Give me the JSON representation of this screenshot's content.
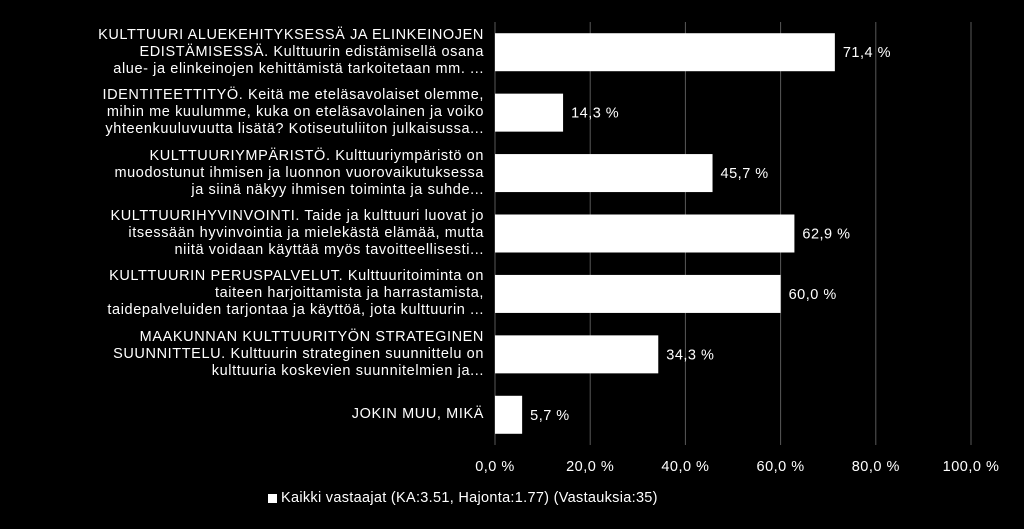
{
  "chart_data": {
    "type": "bar",
    "orientation": "horizontal",
    "categories": [
      "KULTTUURI ALUEKEHITYKSESSÄ JA ELINKEINOJEN\nEDISTÄMISESSÄ. Kulttuurin edistämisellä osana\nalue- ja elinkeinojen kehittämistä tarkoitetaan mm. ...",
      "IDENTITEETTITYÖ. Keitä me eteläsavolaiset olemme,\nmihin me kuulumme, kuka on eteläsavolainen ja voiko\nyhteenkuuluvuutta lisätä? Kotiseutuliiton julkaisussa...",
      "KULTTUURIYMPÄRISTÖ. Kulttuuriympäristö on\nmuodostunut ihmisen ja luonnon vuorovaikutuksessa\nja siinä näkyy ihmisen toiminta ja suhde...",
      "KULTTUURIHYVINVOINTI. Taide ja kulttuuri luovat jo\nitsessään hyvinvointia ja mielekästä elämää, mutta\nniitä voidaan käyttää myös tavoitteellisesti...",
      "KULTTUURIN PERUSPALVELUT. Kulttuuritoiminta on\ntaiteen harjoittamista ja harrastamista,\ntaidepalveluiden tarjontaa ja käyttöä, jota kulttuurin ...",
      "MAAKUNNAN KULTTUURITYÖN STRATEGINEN\nSUUNNITTELU. Kulttuurin strateginen suunnittelu on\nkulttuuria koskevien suunnitelmien ja...",
      "JOKIN MUU, MIKÄ"
    ],
    "series": [
      {
        "name": "Kaikki vastaajat (KA:3.51, Hajonta:1.77) (Vastauksia:35)",
        "values": [
          71.4,
          14.3,
          45.7,
          62.9,
          60.0,
          34.3,
          5.7
        ],
        "value_labels": [
          "71,4 %",
          "14,3 %",
          "45,7 %",
          "62,9 %",
          "60,0 %",
          "34,3 %",
          "5,7 %"
        ]
      }
    ],
    "xlim": [
      0,
      100
    ],
    "x_ticks": [
      0,
      20,
      40,
      60,
      80,
      100
    ],
    "x_tick_labels": [
      "0,0 %",
      "20,0 %",
      "40,0 %",
      "60,0 %",
      "80,0 %",
      "100,0 %"
    ],
    "grid": true,
    "legend_position": "bottom",
    "colors": {
      "background": "#000000",
      "bar": "#ffffff",
      "grid": "#595959",
      "text": "#ffffff"
    }
  }
}
